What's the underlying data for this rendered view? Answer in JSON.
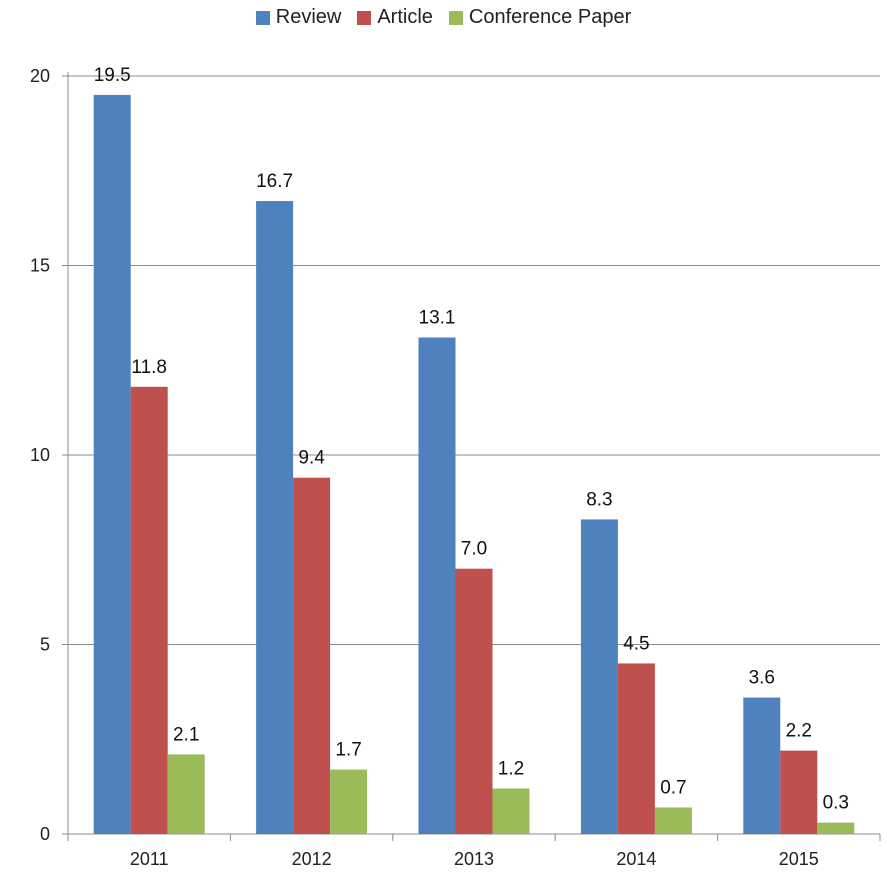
{
  "chart_data": {
    "type": "bar",
    "categories": [
      "2011",
      "2012",
      "2013",
      "2014",
      "2015"
    ],
    "series": [
      {
        "name": "Review",
        "values": [
          19.5,
          16.7,
          13.1,
          8.3,
          3.6
        ],
        "color": "#4f81bd"
      },
      {
        "name": "Article",
        "values": [
          11.8,
          9.4,
          7.0,
          4.5,
          2.2
        ],
        "color": "#c0504d"
      },
      {
        "name": "Conference Paper",
        "values": [
          2.1,
          1.7,
          1.2,
          0.7,
          0.3
        ],
        "color": "#9bbb59"
      }
    ],
    "data_labels": [
      [
        "19.5",
        "16.7",
        "13.1",
        "8.3",
        "3.6"
      ],
      [
        "11.8",
        "9.4",
        "7.0",
        "4.5",
        "2.2"
      ],
      [
        "2.1",
        "1.7",
        "1.2",
        "0.7",
        "0.3"
      ]
    ],
    "y_ticks": [
      "0",
      "5",
      "10",
      "15",
      "20"
    ],
    "ylim": [
      0,
      20
    ],
    "grid": true,
    "legend_position": "top-center"
  }
}
